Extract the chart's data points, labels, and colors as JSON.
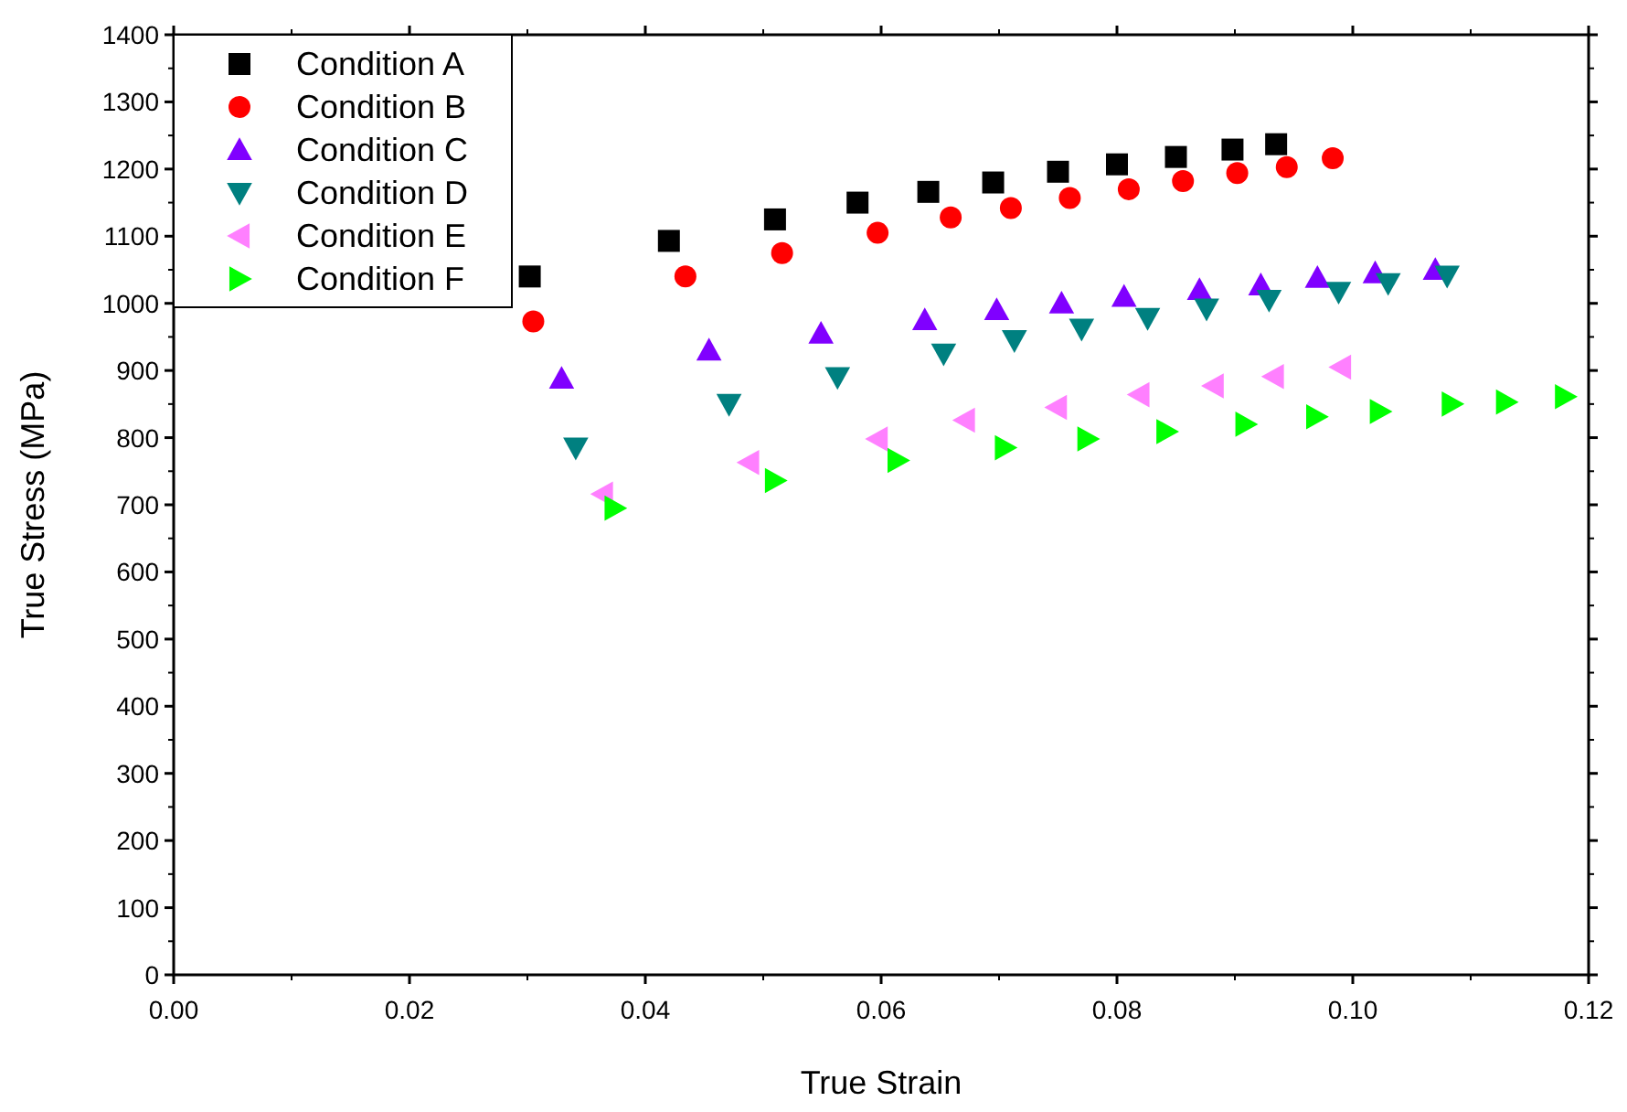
{
  "chart_data": {
    "type": "scatter",
    "xlabel": "True Strain",
    "ylabel": "True Stress (MPa)",
    "xlim": [
      0,
      0.12
    ],
    "ylim": [
      0,
      1400
    ],
    "xticks": [
      {
        "value": 0,
        "label": "0.00"
      },
      {
        "value": 0.02,
        "label": "0.02"
      },
      {
        "value": 0.04,
        "label": "0.04"
      },
      {
        "value": 0.06,
        "label": "0.06"
      },
      {
        "value": 0.08,
        "label": "0.08"
      },
      {
        "value": 0.1,
        "label": "0.10"
      },
      {
        "value": 0.12,
        "label": "0.12"
      }
    ],
    "yticks": [
      0,
      100,
      200,
      300,
      400,
      500,
      600,
      700,
      800,
      900,
      1000,
      1100,
      1200,
      1300,
      1400
    ],
    "grid": false,
    "legend": "top left",
    "series": [
      {
        "name": "Condition A",
        "color": "#000000",
        "marker": "square",
        "x": [
          0.0302,
          0.042,
          0.051,
          0.058,
          0.064,
          0.0695,
          0.075,
          0.08,
          0.085,
          0.0898,
          0.0935
        ],
        "values": [
          1040,
          1093,
          1125,
          1150,
          1166,
          1180,
          1196,
          1207,
          1218,
          1229,
          1237
        ]
      },
      {
        "name": "Condition B",
        "color": "#ff0000",
        "marker": "circle",
        "x": [
          0.0305,
          0.0434,
          0.0516,
          0.0597,
          0.0659,
          0.071,
          0.076,
          0.081,
          0.0856,
          0.0902,
          0.0944,
          0.0983
        ],
        "values": [
          973,
          1040,
          1075,
          1105,
          1128,
          1142,
          1157,
          1170,
          1182,
          1194,
          1203,
          1216
        ]
      },
      {
        "name": "Condition C",
        "color": "#8000ff",
        "marker": "triangle-up",
        "x": [
          0.0329,
          0.0454,
          0.0549,
          0.0637,
          0.0698,
          0.0753,
          0.0806,
          0.087,
          0.0922,
          0.097,
          0.1019,
          0.107
        ],
        "values": [
          888,
          930,
          955,
          975,
          990,
          1000,
          1010,
          1020,
          1027,
          1038,
          1045,
          1050
        ]
      },
      {
        "name": "Condition D",
        "color": "#008080",
        "marker": "triangle-down",
        "x": [
          0.0341,
          0.0471,
          0.0563,
          0.0653,
          0.0713,
          0.077,
          0.0826,
          0.0876,
          0.0929,
          0.0988,
          0.103,
          0.108
        ],
        "values": [
          785,
          850,
          890,
          925,
          945,
          962,
          978,
          992,
          1005,
          1017,
          1030,
          1041
        ]
      },
      {
        "name": "Condition E",
        "color": "#ff80ff",
        "marker": "triangle-left",
        "x": [
          0.0364,
          0.0488,
          0.0597,
          0.0671,
          0.0749,
          0.0819,
          0.0882,
          0.0933,
          0.099
        ],
        "values": [
          716,
          763,
          798,
          826,
          845,
          864,
          877,
          891,
          905
        ]
      },
      {
        "name": "Condition F",
        "color": "#00ff00",
        "marker": "triangle-right",
        "x": [
          0.0374,
          0.051,
          0.0614,
          0.0705,
          0.0775,
          0.0842,
          0.0909,
          0.0969,
          0.1023,
          0.1084,
          0.113,
          0.118
        ],
        "values": [
          695,
          736,
          766,
          785,
          798,
          809,
          820,
          831,
          839,
          850,
          853,
          861
        ]
      }
    ]
  }
}
